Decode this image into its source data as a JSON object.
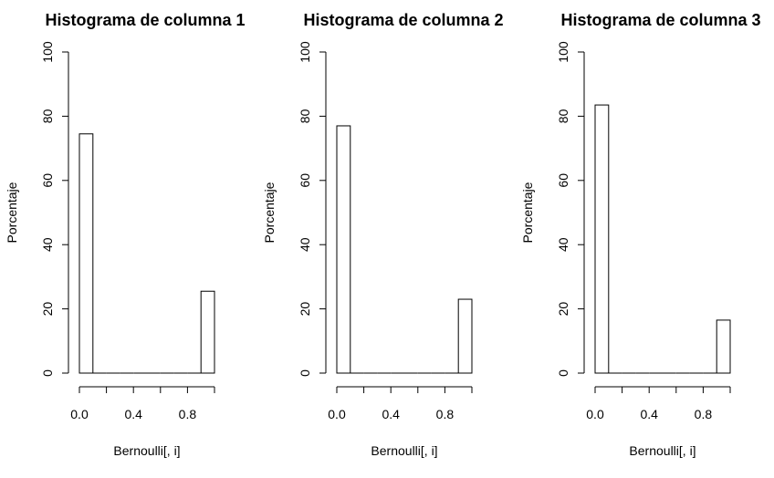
{
  "chart_data": [
    {
      "type": "bar",
      "title": "Histograma de columna 1",
      "xlabel": "Bernoulli[, i]",
      "ylabel": "Porcentaje",
      "bins": [
        {
          "x0": 0.0,
          "x1": 0.1,
          "value": 74.5
        },
        {
          "x0": 0.1,
          "x1": 0.2,
          "value": 0
        },
        {
          "x0": 0.2,
          "x1": 0.3,
          "value": 0
        },
        {
          "x0": 0.3,
          "x1": 0.4,
          "value": 0
        },
        {
          "x0": 0.4,
          "x1": 0.5,
          "value": 0
        },
        {
          "x0": 0.5,
          "x1": 0.6,
          "value": 0
        },
        {
          "x0": 0.6,
          "x1": 0.7,
          "value": 0
        },
        {
          "x0": 0.7,
          "x1": 0.8,
          "value": 0
        },
        {
          "x0": 0.8,
          "x1": 0.9,
          "value": 0
        },
        {
          "x0": 0.9,
          "x1": 1.0,
          "value": 25.5
        }
      ],
      "xlim": [
        0,
        1
      ],
      "ylim": [
        0,
        100
      ],
      "x_ticks": [
        0.0,
        0.2,
        0.4,
        0.6,
        0.8,
        1.0
      ],
      "x_tick_labels": [
        "0.0",
        "",
        "0.4",
        "",
        "0.8",
        ""
      ],
      "y_ticks": [
        0,
        20,
        40,
        60,
        80,
        100
      ],
      "y_tick_labels": [
        "0",
        "20",
        "40",
        "60",
        "80",
        "100"
      ],
      "grid": false
    },
    {
      "type": "bar",
      "title": "Histograma de columna 2",
      "xlabel": "Bernoulli[, i]",
      "ylabel": "Porcentaje",
      "bins": [
        {
          "x0": 0.0,
          "x1": 0.1,
          "value": 77.0
        },
        {
          "x0": 0.1,
          "x1": 0.2,
          "value": 0
        },
        {
          "x0": 0.2,
          "x1": 0.3,
          "value": 0
        },
        {
          "x0": 0.3,
          "x1": 0.4,
          "value": 0
        },
        {
          "x0": 0.4,
          "x1": 0.5,
          "value": 0
        },
        {
          "x0": 0.5,
          "x1": 0.6,
          "value": 0
        },
        {
          "x0": 0.6,
          "x1": 0.7,
          "value": 0
        },
        {
          "x0": 0.7,
          "x1": 0.8,
          "value": 0
        },
        {
          "x0": 0.8,
          "x1": 0.9,
          "value": 0
        },
        {
          "x0": 0.9,
          "x1": 1.0,
          "value": 23.0
        }
      ],
      "xlim": [
        0,
        1
      ],
      "ylim": [
        0,
        100
      ],
      "x_ticks": [
        0.0,
        0.2,
        0.4,
        0.6,
        0.8,
        1.0
      ],
      "x_tick_labels": [
        "0.0",
        "",
        "0.4",
        "",
        "0.8",
        ""
      ],
      "y_ticks": [
        0,
        20,
        40,
        60,
        80,
        100
      ],
      "y_tick_labels": [
        "0",
        "20",
        "40",
        "60",
        "80",
        "100"
      ],
      "grid": false
    },
    {
      "type": "bar",
      "title": "Histograma de columna 3",
      "xlabel": "Bernoulli[, i]",
      "ylabel": "Porcentaje",
      "bins": [
        {
          "x0": 0.0,
          "x1": 0.1,
          "value": 83.5
        },
        {
          "x0": 0.1,
          "x1": 0.2,
          "value": 0
        },
        {
          "x0": 0.2,
          "x1": 0.3,
          "value": 0
        },
        {
          "x0": 0.3,
          "x1": 0.4,
          "value": 0
        },
        {
          "x0": 0.4,
          "x1": 0.5,
          "value": 0
        },
        {
          "x0": 0.5,
          "x1": 0.6,
          "value": 0
        },
        {
          "x0": 0.6,
          "x1": 0.7,
          "value": 0
        },
        {
          "x0": 0.7,
          "x1": 0.8,
          "value": 0
        },
        {
          "x0": 0.8,
          "x1": 0.9,
          "value": 0
        },
        {
          "x0": 0.9,
          "x1": 1.0,
          "value": 16.5
        }
      ],
      "xlim": [
        0,
        1
      ],
      "ylim": [
        0,
        100
      ],
      "x_ticks": [
        0.0,
        0.2,
        0.4,
        0.6,
        0.8,
        1.0
      ],
      "x_tick_labels": [
        "0.0",
        "",
        "0.4",
        "",
        "0.8",
        ""
      ],
      "y_ticks": [
        0,
        20,
        40,
        60,
        80,
        100
      ],
      "y_tick_labels": [
        "0",
        "20",
        "40",
        "60",
        "80",
        "100"
      ],
      "grid": false
    }
  ]
}
